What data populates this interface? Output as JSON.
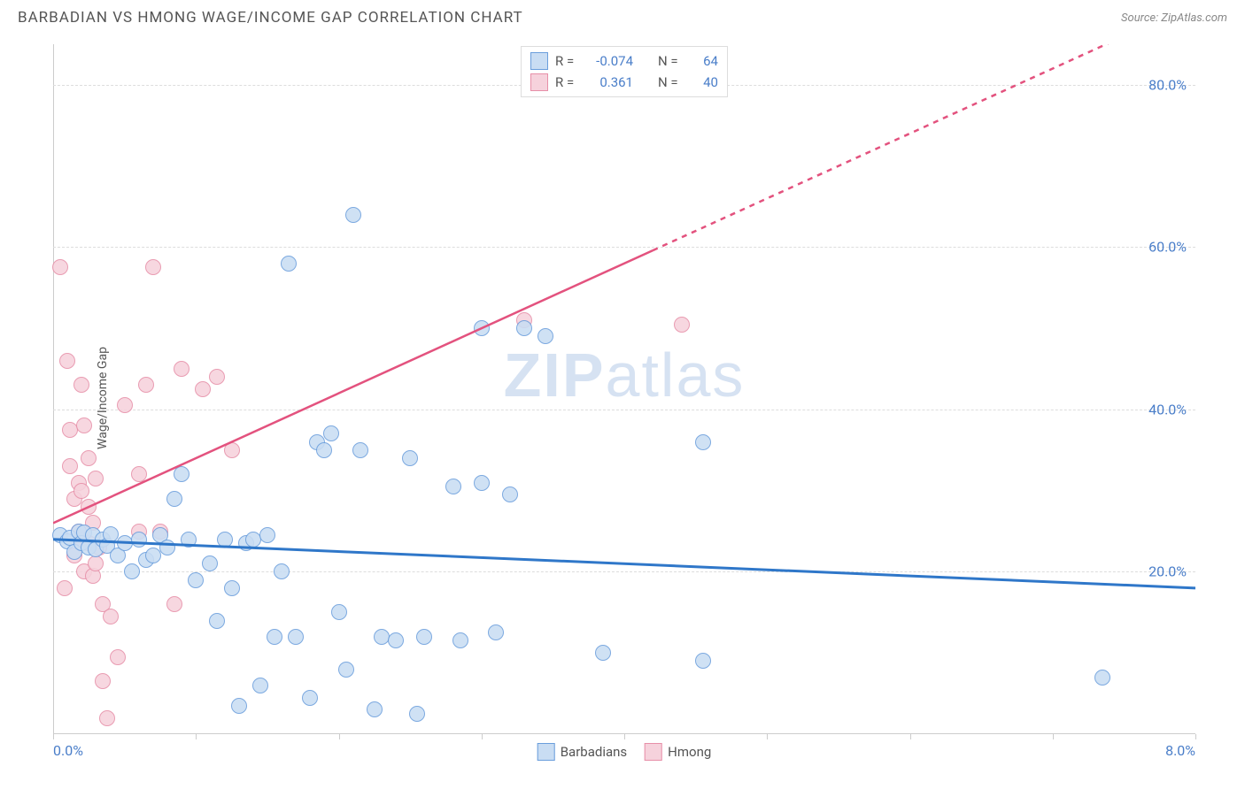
{
  "header": {
    "title": "BARBADIAN VS HMONG WAGE/INCOME GAP CORRELATION CHART",
    "source": "Source: ZipAtlas.com"
  },
  "axes": {
    "y_label": "Wage/Income Gap",
    "x_min": 0.0,
    "x_max": 8.0,
    "y_min": 0.0,
    "y_max": 85.0,
    "y_ticks": [
      20.0,
      40.0,
      60.0,
      80.0
    ],
    "y_tick_labels": [
      "20.0%",
      "40.0%",
      "60.0%",
      "80.0%"
    ],
    "x_tick_positions": [
      0.0,
      1.0,
      2.0,
      3.0,
      4.0,
      5.0,
      6.0,
      7.0,
      8.0
    ],
    "x_tick_labels": {
      "start": "0.0%",
      "end": "8.0%"
    }
  },
  "series": {
    "barbadians": {
      "label": "Barbadians",
      "point_fill": "#c9ddf3",
      "point_stroke": "#6a9edc",
      "point_radius": 9,
      "trend_color": "#2f77c9",
      "trend_width": 3,
      "trend_y_at_xmin": 24.0,
      "trend_y_at_xmax": 18.0,
      "dash_after_x": null,
      "stats": {
        "R": "-0.074",
        "N": "64"
      },
      "points": [
        [
          0.05,
          24.5
        ],
        [
          0.1,
          23.8
        ],
        [
          0.12,
          24.2
        ],
        [
          0.15,
          22.5
        ],
        [
          0.18,
          25.0
        ],
        [
          0.2,
          23.5
        ],
        [
          0.22,
          24.8
        ],
        [
          0.25,
          23.0
        ],
        [
          0.28,
          24.5
        ],
        [
          0.3,
          22.8
        ],
        [
          0.35,
          24.0
        ],
        [
          0.38,
          23.2
        ],
        [
          0.4,
          24.6
        ],
        [
          0.45,
          22.0
        ],
        [
          0.5,
          23.5
        ],
        [
          0.55,
          20.0
        ],
        [
          0.6,
          24.0
        ],
        [
          0.65,
          21.5
        ],
        [
          0.7,
          22.0
        ],
        [
          0.75,
          24.5
        ],
        [
          0.8,
          23.0
        ],
        [
          0.85,
          29.0
        ],
        [
          0.9,
          32.0
        ],
        [
          0.95,
          24.0
        ],
        [
          1.0,
          19.0
        ],
        [
          1.1,
          21.0
        ],
        [
          1.15,
          14.0
        ],
        [
          1.2,
          24.0
        ],
        [
          1.25,
          18.0
        ],
        [
          1.3,
          3.5
        ],
        [
          1.35,
          23.5
        ],
        [
          1.4,
          24.0
        ],
        [
          1.45,
          6.0
        ],
        [
          1.5,
          24.5
        ],
        [
          1.55,
          12.0
        ],
        [
          1.6,
          20.0
        ],
        [
          1.65,
          58.0
        ],
        [
          1.7,
          12.0
        ],
        [
          1.8,
          4.5
        ],
        [
          1.85,
          36.0
        ],
        [
          1.9,
          35.0
        ],
        [
          1.95,
          37.0
        ],
        [
          2.0,
          15.0
        ],
        [
          2.05,
          8.0
        ],
        [
          2.1,
          64.0
        ],
        [
          2.15,
          35.0
        ],
        [
          2.25,
          3.0
        ],
        [
          2.3,
          12.0
        ],
        [
          2.4,
          11.5
        ],
        [
          2.5,
          34.0
        ],
        [
          2.55,
          2.5
        ],
        [
          2.6,
          12.0
        ],
        [
          2.8,
          30.5
        ],
        [
          2.85,
          11.5
        ],
        [
          3.0,
          50.0
        ],
        [
          3.0,
          31.0
        ],
        [
          3.1,
          12.5
        ],
        [
          3.2,
          29.5
        ],
        [
          3.3,
          50.0
        ],
        [
          3.45,
          49.0
        ],
        [
          3.85,
          10.0
        ],
        [
          4.55,
          36.0
        ],
        [
          4.55,
          9.0
        ],
        [
          7.35,
          7.0
        ]
      ]
    },
    "hmong": {
      "label": "Hmong",
      "point_fill": "#f6d2dc",
      "point_stroke": "#e78fa8",
      "point_radius": 9,
      "trend_color": "#e3527e",
      "trend_width": 2.5,
      "trend_y_at_xmin": 26.0,
      "trend_y_at_xmax": 90.0,
      "dash_after_x": 4.2,
      "stats": {
        "R": "0.361",
        "N": "40"
      },
      "points": [
        [
          0.05,
          57.5
        ],
        [
          0.08,
          18.0
        ],
        [
          0.1,
          46.0
        ],
        [
          0.12,
          33.0
        ],
        [
          0.12,
          37.5
        ],
        [
          0.15,
          22.0
        ],
        [
          0.15,
          29.0
        ],
        [
          0.18,
          31.0
        ],
        [
          0.18,
          25.0
        ],
        [
          0.2,
          30.0
        ],
        [
          0.2,
          43.0
        ],
        [
          0.2,
          24.0
        ],
        [
          0.22,
          38.0
        ],
        [
          0.22,
          20.0
        ],
        [
          0.25,
          34.0
        ],
        [
          0.25,
          23.5
        ],
        [
          0.25,
          28.0
        ],
        [
          0.28,
          19.5
        ],
        [
          0.28,
          26.0
        ],
        [
          0.3,
          31.5
        ],
        [
          0.3,
          21.0
        ],
        [
          0.32,
          23.0
        ],
        [
          0.35,
          16.0
        ],
        [
          0.35,
          6.5
        ],
        [
          0.38,
          2.0
        ],
        [
          0.4,
          14.5
        ],
        [
          0.45,
          9.5
        ],
        [
          0.5,
          40.5
        ],
        [
          0.6,
          32.0
        ],
        [
          0.6,
          25.0
        ],
        [
          0.65,
          43.0
        ],
        [
          0.7,
          57.5
        ],
        [
          0.75,
          25.0
        ],
        [
          0.85,
          16.0
        ],
        [
          0.9,
          45.0
        ],
        [
          1.05,
          42.5
        ],
        [
          1.15,
          44.0
        ],
        [
          1.25,
          35.0
        ],
        [
          3.3,
          51.0
        ],
        [
          4.4,
          50.5
        ]
      ]
    }
  },
  "legend_top": {
    "R_label": "R =",
    "N_label": "N ="
  },
  "watermark": {
    "zip": "ZIP",
    "atlas": "atlas"
  },
  "colors": {
    "background": "#ffffff",
    "grid": "#dddddd",
    "axis": "#cccccc",
    "title_text": "#555555",
    "tick_text": "#4a7ec9"
  }
}
